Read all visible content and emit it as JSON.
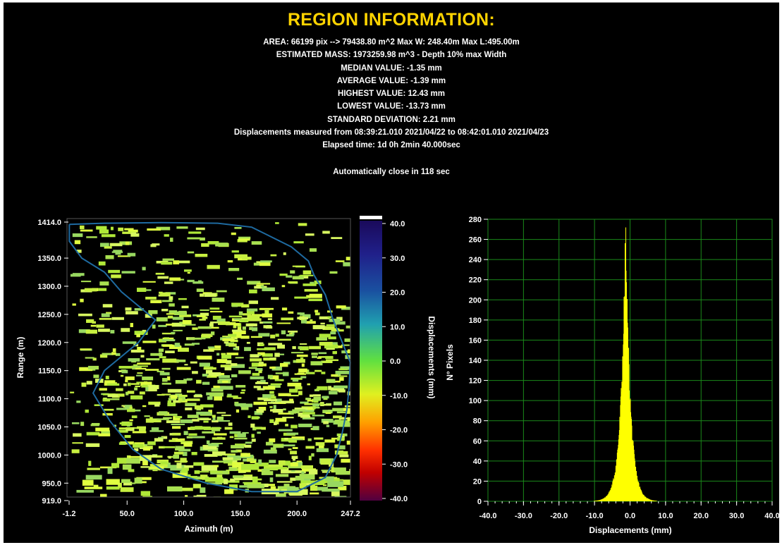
{
  "header": {
    "title": "REGION INFORMATION:",
    "lines": [
      "AREA: 66199 pix --> 79438.80 m^2   Max W: 248.40m   Max L:495.00m",
      "ESTIMATED MASS: 1973259.98 m^3 - Depth 10% max Width",
      "MEDIAN VALUE: -1.35 mm",
      "AVERAGE VALUE: -1.39 mm",
      "HIGHEST VALUE: 12.43 mm",
      "LOWEST VALUE: -13.73 mm",
      "STANDARD DEVIATION: 2.21 mm",
      "Displacements measured from 08:39:21.010 2021/04/22 to 08:42:01.010 2021/04/23",
      "Elapsed time: 1d 0h 2min 40.000sec"
    ],
    "close_note": "Automatically close in 118 sec"
  },
  "colors": {
    "background": "#000000",
    "title": "#ffd400",
    "text": "#ffffff",
    "histogram_fill": "#ffff00",
    "grid": "#1a8a1a",
    "outline": "#1e6aa0",
    "map_low": "#c8f040",
    "map_high": "#a0e060"
  },
  "chart_data": [
    {
      "type": "heatmap",
      "xlabel": "Azimuth (m)",
      "ylabel": "Range (m)",
      "xlim": [
        -1.2,
        247.2
      ],
      "ylim": [
        919.0,
        1414.0
      ],
      "xticks": [
        "-1.2",
        "50.0",
        "100.0",
        "150.0",
        "200.0",
        "247.2"
      ],
      "xtick_values": [
        -1.2,
        50.0,
        100.0,
        150.0,
        200.0,
        247.2
      ],
      "yticks": [
        "1414.0",
        "1350.0",
        "1300.0",
        "1250.0",
        "1200.0",
        "1150.0",
        "1100.0",
        "1050.0",
        "1000.0",
        "950.0",
        "919.0"
      ],
      "ytick_values": [
        1414.0,
        1350.0,
        1300.0,
        1250.0,
        1200.0,
        1150.0,
        1100.0,
        1050.0,
        1000.0,
        950.0,
        919.0
      ],
      "colorbar": {
        "label": "Displacements (mm)",
        "range": [
          -40.0,
          40.0
        ],
        "ticks": [
          "40.0",
          "30.0",
          "20.0",
          "10.0",
          "0.0",
          "-10.0",
          "-20.0",
          "-30.0",
          "-40.0"
        ],
        "tick_values": [
          40,
          30,
          20,
          10,
          0,
          -10,
          -20,
          -30,
          -40
        ]
      },
      "region_outline_xy": [
        [
          -1,
          1410
        ],
        [
          30,
          1412
        ],
        [
          80,
          1413
        ],
        [
          130,
          1412
        ],
        [
          160,
          1405
        ],
        [
          175,
          1390
        ],
        [
          195,
          1370
        ],
        [
          210,
          1345
        ],
        [
          215,
          1320
        ],
        [
          225,
          1285
        ],
        [
          232,
          1240
        ],
        [
          240,
          1200
        ],
        [
          247,
          1165
        ],
        [
          246,
          1120
        ],
        [
          244,
          1080
        ],
        [
          240,
          1040
        ],
        [
          235,
          1000
        ],
        [
          225,
          960
        ],
        [
          200,
          935
        ],
        [
          160,
          935
        ],
        [
          120,
          950
        ],
        [
          80,
          975
        ],
        [
          55,
          1010
        ],
        [
          35,
          1060
        ],
        [
          20,
          1110
        ],
        [
          30,
          1150
        ],
        [
          60,
          1200
        ],
        [
          75,
          1240
        ],
        [
          45,
          1290
        ],
        [
          30,
          1325
        ],
        [
          10,
          1350
        ],
        [
          -1,
          1380
        ],
        [
          -1,
          1410
        ]
      ]
    },
    {
      "type": "bar",
      "xlabel": "Displacements (mm)",
      "ylabel": "N° Pixels",
      "xlim": [
        -40.0,
        40.0
      ],
      "ylim": [
        0,
        280
      ],
      "xticks": [
        "-40.0",
        "-30.0",
        "-20.0",
        "-10.0",
        "0.0",
        "10.0",
        "20.0",
        "30.0",
        "40.0"
      ],
      "xtick_values": [
        -40,
        -30,
        -20,
        -10,
        0,
        10,
        20,
        30,
        40
      ],
      "yticks": [
        "280",
        "260",
        "240",
        "220",
        "200",
        "180",
        "160",
        "140",
        "120",
        "100",
        "80",
        "60",
        "40",
        "20",
        "0"
      ],
      "ytick_values": [
        280,
        260,
        240,
        220,
        200,
        180,
        160,
        140,
        120,
        100,
        80,
        60,
        40,
        20,
        0
      ],
      "grid": true,
      "peak_x": -1.35,
      "peak_y": 276,
      "spread": 2.21
    }
  ]
}
